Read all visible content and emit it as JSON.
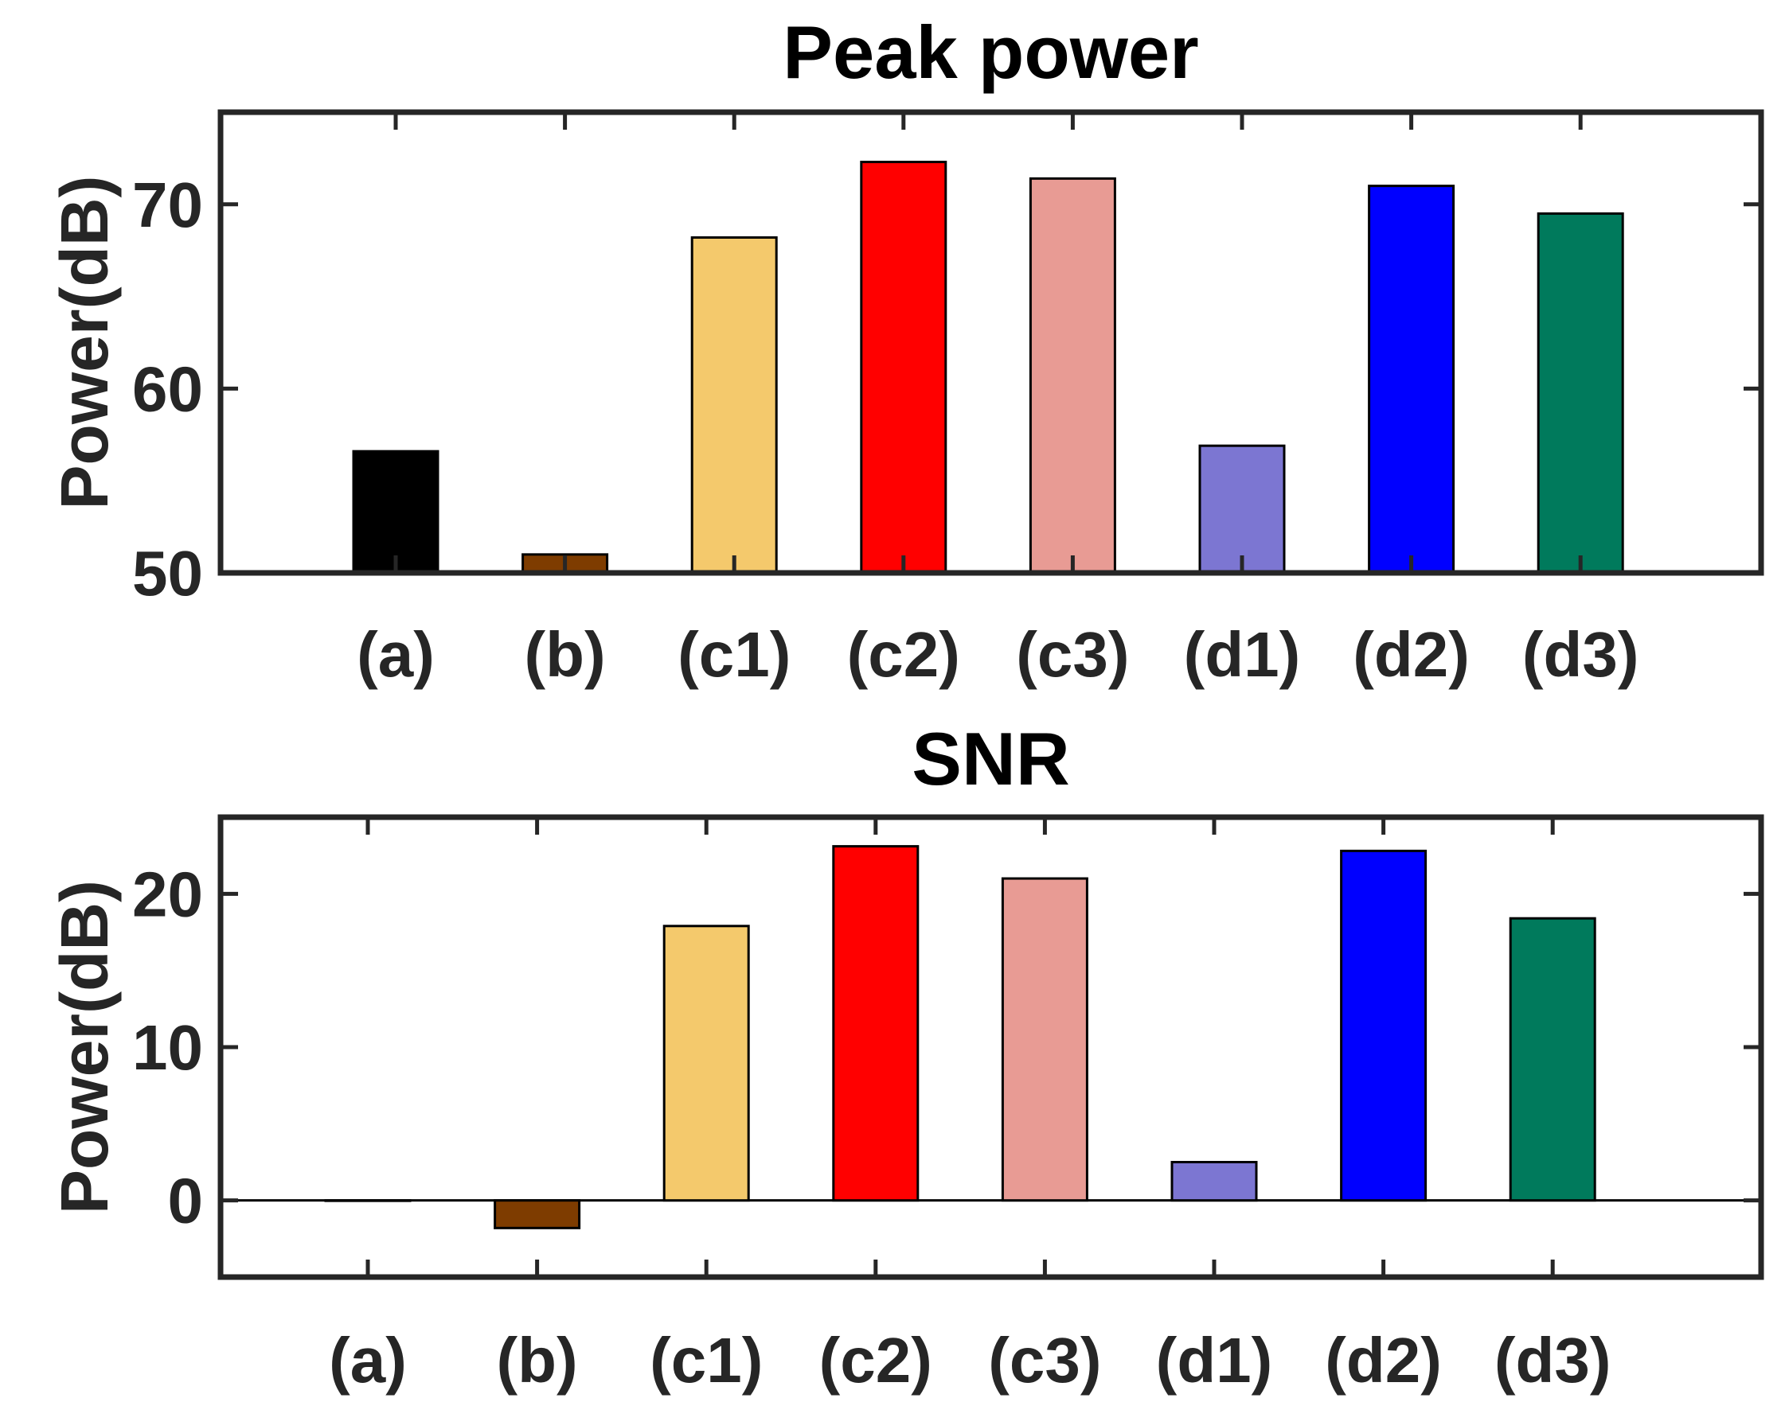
{
  "chart_data": [
    {
      "type": "bar",
      "title": "Peak power",
      "xlabel": "",
      "ylabel": "Power(dB)",
      "categories": [
        "(a)",
        "(b)",
        "(c1)",
        "(c2)",
        "(c3)",
        "(d1)",
        "(d2)",
        "(d3)"
      ],
      "values": [
        56.6,
        51.0,
        68.2,
        72.3,
        71.4,
        56.9,
        71.0,
        69.5
      ],
      "baseline": 50,
      "ylim": [
        50,
        75
      ],
      "yticks": [
        50,
        60,
        70
      ],
      "ytick_labels": [
        "50",
        "60",
        "70"
      ],
      "colors": [
        "#000000",
        "#7e3c00",
        "#f4c96c",
        "#ff0000",
        "#e89b94",
        "#7c76d2",
        "#0000ff",
        "#007a5c"
      ]
    },
    {
      "type": "bar",
      "title": "SNR",
      "xlabel": "",
      "ylabel": "Power(dB)",
      "categories": [
        "(a)",
        "(b)",
        "(c1)",
        "(c2)",
        "(c3)",
        "(d1)",
        "(d2)",
        "(d3)"
      ],
      "values": [
        0,
        -1.8,
        17.9,
        23.1,
        21.0,
        2.5,
        22.8,
        18.4
      ],
      "baseline": 0,
      "ylim": [
        -5,
        25
      ],
      "yticks": [
        0,
        10,
        20
      ],
      "ytick_labels": [
        "0",
        "10",
        "20"
      ],
      "colors": [
        "#000000",
        "#7e3c00",
        "#f4c96c",
        "#ff0000",
        "#e89b94",
        "#7c76d2",
        "#0000ff",
        "#007a5c"
      ]
    }
  ]
}
